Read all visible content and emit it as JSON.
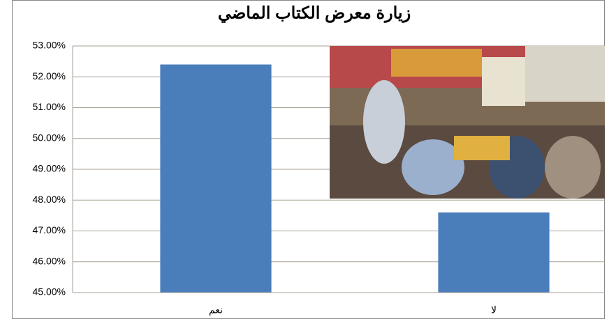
{
  "chart_data": {
    "type": "bar",
    "title": "زيارة معرض الكتاب الماضي",
    "categories": [
      "نعم",
      "لا"
    ],
    "values": [
      52.4,
      47.6
    ],
    "color": "#4a7ebb",
    "ylim": [
      45,
      53
    ],
    "yticks": [
      {
        "value": 45,
        "label": "45.00%"
      },
      {
        "value": 46,
        "label": "46.00%"
      },
      {
        "value": 47,
        "label": "47.00%"
      },
      {
        "value": 48,
        "label": "48.00%"
      },
      {
        "value": 49,
        "label": "49.00%"
      },
      {
        "value": 50,
        "label": "50.00%"
      },
      {
        "value": 51,
        "label": "51.00%"
      },
      {
        "value": 52,
        "label": "52.00%"
      },
      {
        "value": 53,
        "label": "53.00%"
      }
    ],
    "grid": true
  }
}
